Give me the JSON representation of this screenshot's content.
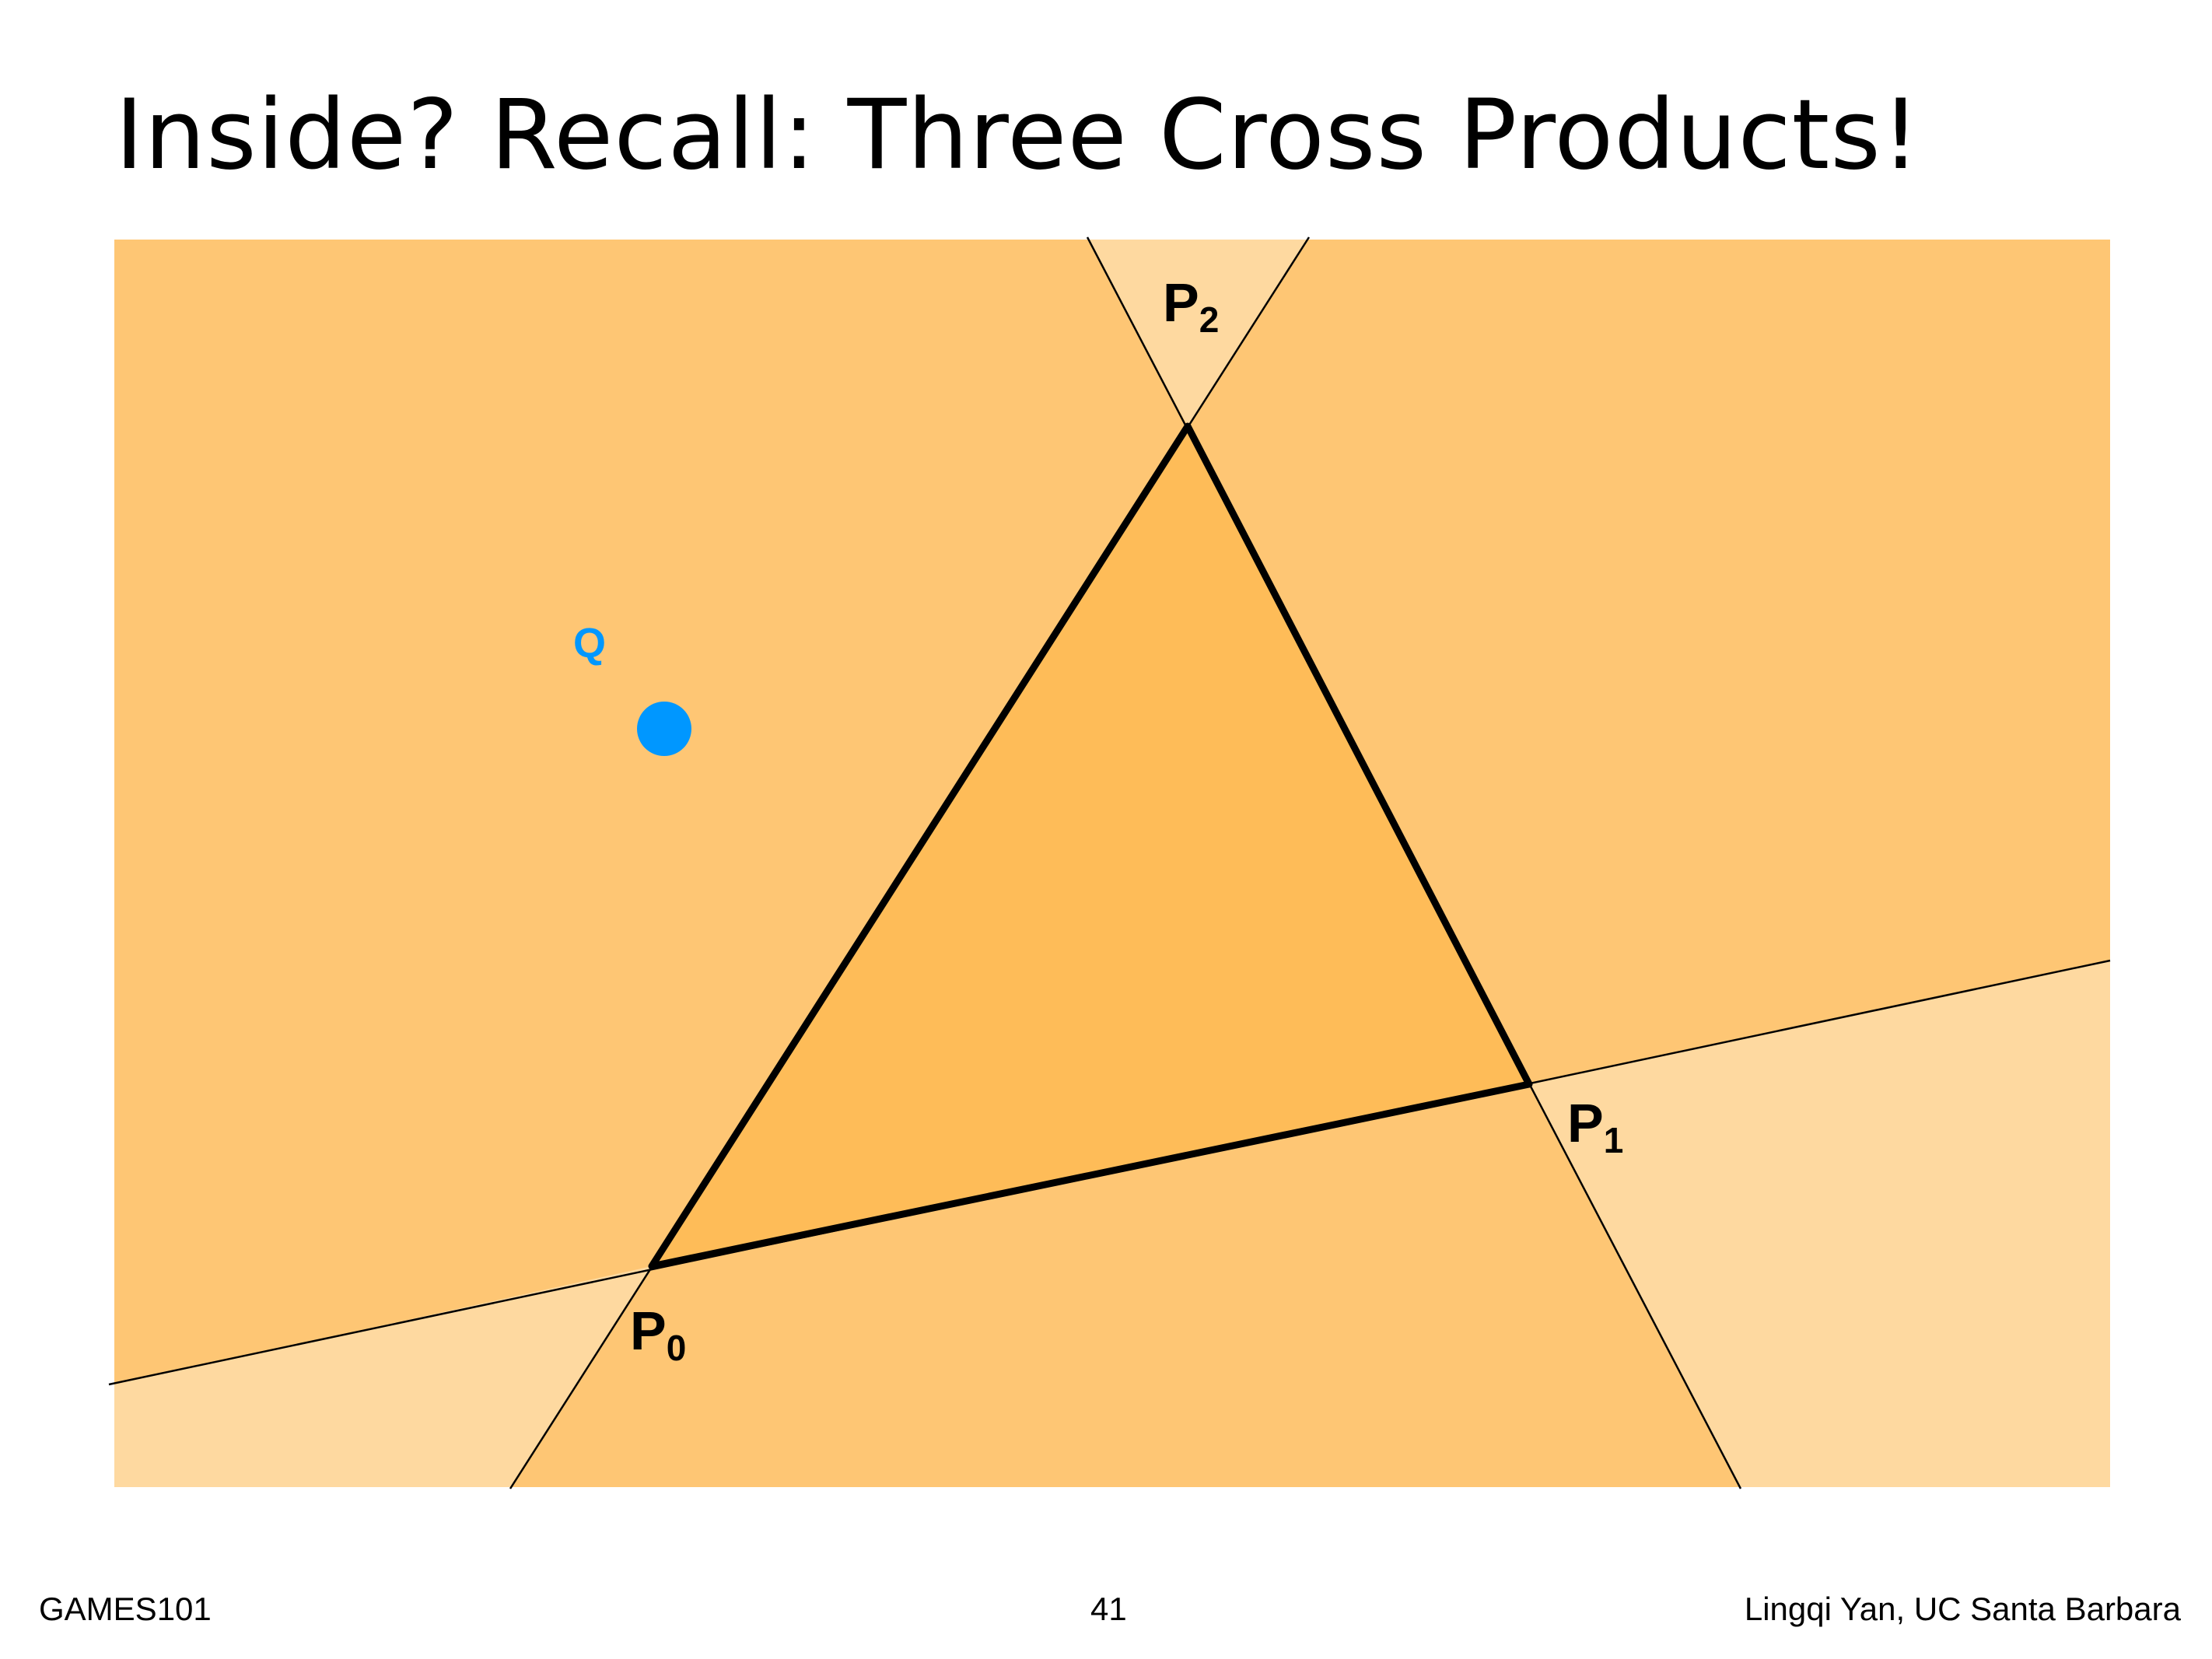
{
  "title": "Inside? Recall: Three Cross Products!",
  "labels": {
    "p0": "P",
    "p0_sub": "0",
    "p1": "P",
    "p1_sub": "1",
    "p2": "P",
    "p2_sub": "2",
    "q": "Q"
  },
  "colors": {
    "half_plane": "#fec674",
    "outside_region": "#fed9a0",
    "triangle_fill": "#febc58",
    "edge": "#000000",
    "point_q": "#0097ff"
  },
  "footer": {
    "course": "GAMES101",
    "page_number": "41",
    "author": "Lingqi Yan, UC Santa Barbara"
  }
}
